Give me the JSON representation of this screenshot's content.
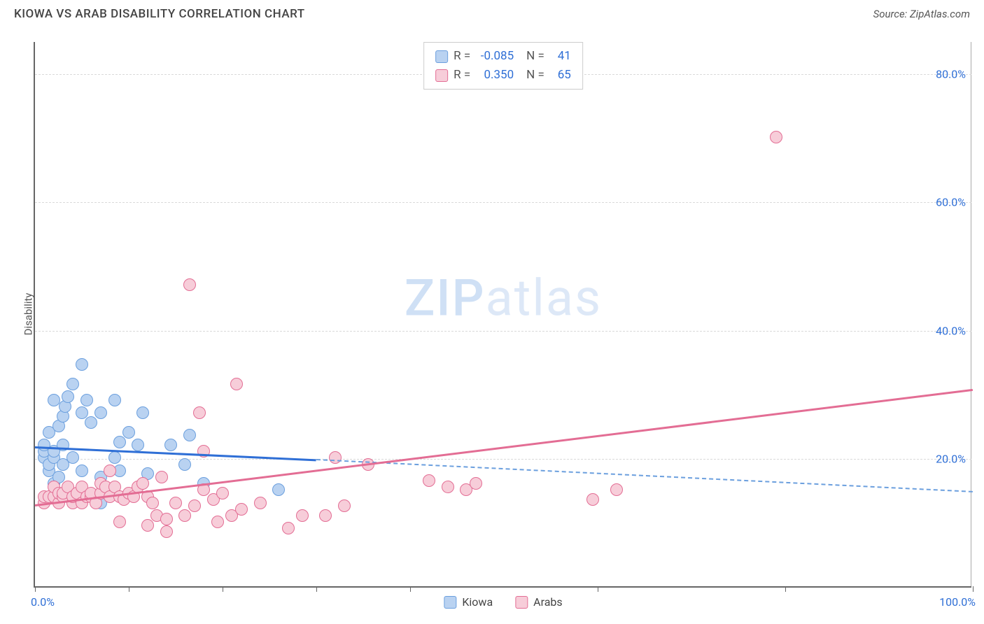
{
  "header": {
    "title": "KIOWA VS ARAB DISABILITY CORRELATION CHART",
    "source": "Source: ZipAtlas.com"
  },
  "watermark": {
    "bold": "ZIP",
    "light": "atlas"
  },
  "chart": {
    "type": "scatter",
    "y_axis_title": "Disability",
    "xlim": [
      0,
      100
    ],
    "ylim": [
      0,
      85
    ],
    "x_axis_label_left": "0.0%",
    "x_axis_label_right": "100.0%",
    "y_ticks": [
      {
        "value": 20,
        "label": "20.0%"
      },
      {
        "value": 40,
        "label": "40.0%"
      },
      {
        "value": 60,
        "label": "60.0%"
      },
      {
        "value": 80,
        "label": "80.0%"
      }
    ],
    "x_tick_positions": [
      0,
      10,
      20,
      30,
      40,
      60,
      80,
      100
    ],
    "background_color": "#ffffff",
    "grid_color": "#d9d9d9",
    "axis_color": "#666666",
    "point_radius": 9,
    "series": [
      {
        "name": "Kiowa",
        "fill_color": "#b9d2f1",
        "stroke_color": "#6b9fde",
        "correlation_R": "-0.085",
        "correlation_N": "41",
        "trend": {
          "x1": 0,
          "y1": 22,
          "x2": 30,
          "y2": 20,
          "solid_color": "#2f6fd6",
          "extend_x": 100,
          "extend_y": 15,
          "dash_color": "#6b9fde"
        },
        "points": [
          [
            1,
            20
          ],
          [
            1,
            21
          ],
          [
            1,
            22
          ],
          [
            1.5,
            18
          ],
          [
            1.5,
            19
          ],
          [
            1.5,
            24
          ],
          [
            2,
            16
          ],
          [
            2,
            20
          ],
          [
            2,
            21
          ],
          [
            2,
            29
          ],
          [
            2.5,
            17
          ],
          [
            2.5,
            25
          ],
          [
            3,
            19
          ],
          [
            3,
            22
          ],
          [
            3,
            26.5
          ],
          [
            3.2,
            28
          ],
          [
            3.5,
            14
          ],
          [
            3.5,
            29.5
          ],
          [
            4,
            20
          ],
          [
            4,
            31.5
          ],
          [
            5,
            18
          ],
          [
            5,
            27
          ],
          [
            5,
            34.5
          ],
          [
            5.5,
            29
          ],
          [
            6,
            25.5
          ],
          [
            7,
            13
          ],
          [
            7,
            17
          ],
          [
            7,
            27
          ],
          [
            8.5,
            20
          ],
          [
            8.5,
            29
          ],
          [
            9,
            18
          ],
          [
            9,
            22.5
          ],
          [
            10,
            24
          ],
          [
            11,
            22
          ],
          [
            11.5,
            27
          ],
          [
            12,
            17.5
          ],
          [
            14.5,
            22
          ],
          [
            16,
            19
          ],
          [
            16.5,
            23.5
          ],
          [
            18,
            16
          ],
          [
            26,
            15
          ]
        ]
      },
      {
        "name": "Arabs",
        "fill_color": "#f7cdd9",
        "stroke_color": "#e36d94",
        "correlation_R": "0.350",
        "correlation_N": "65",
        "trend": {
          "x1": 0,
          "y1": 13,
          "x2": 100,
          "y2": 31,
          "solid_color": "#e36d94"
        },
        "points": [
          [
            1,
            13
          ],
          [
            1,
            14
          ],
          [
            1.5,
            14
          ],
          [
            2,
            14
          ],
          [
            2,
            15.5
          ],
          [
            2.5,
            13
          ],
          [
            2.5,
            14.5
          ],
          [
            3,
            14
          ],
          [
            3,
            14.5
          ],
          [
            3.5,
            15.5
          ],
          [
            4,
            13
          ],
          [
            4,
            14
          ],
          [
            4.5,
            14.5
          ],
          [
            5,
            15.5
          ],
          [
            5,
            13
          ],
          [
            5.5,
            14
          ],
          [
            6,
            14
          ],
          [
            6,
            14.5
          ],
          [
            6.5,
            13
          ],
          [
            7,
            14.5
          ],
          [
            7,
            16
          ],
          [
            7.5,
            15.5
          ],
          [
            8,
            14
          ],
          [
            8,
            18
          ],
          [
            8.5,
            15.5
          ],
          [
            9,
            10
          ],
          [
            9,
            14
          ],
          [
            9.5,
            13.5
          ],
          [
            10,
            14.5
          ],
          [
            10.5,
            14
          ],
          [
            11,
            15.5
          ],
          [
            11.5,
            16
          ],
          [
            12,
            9.5
          ],
          [
            12,
            14
          ],
          [
            12.5,
            13
          ],
          [
            13,
            11
          ],
          [
            13.5,
            17
          ],
          [
            14,
            8.5
          ],
          [
            14,
            10.5
          ],
          [
            15,
            13
          ],
          [
            16,
            11
          ],
          [
            16.5,
            47
          ],
          [
            17,
            12.5
          ],
          [
            17.5,
            27
          ],
          [
            18,
            15
          ],
          [
            18,
            21
          ],
          [
            19,
            13.5
          ],
          [
            19.5,
            10
          ],
          [
            20,
            14.5
          ],
          [
            21,
            11
          ],
          [
            21.5,
            31.5
          ],
          [
            22,
            12
          ],
          [
            24,
            13
          ],
          [
            27,
            9
          ],
          [
            28.5,
            11
          ],
          [
            31,
            11
          ],
          [
            32,
            20
          ],
          [
            33,
            12.5
          ],
          [
            35.5,
            19
          ],
          [
            42,
            16.5
          ],
          [
            44,
            15.5
          ],
          [
            46,
            15
          ],
          [
            47,
            16
          ],
          [
            59.5,
            13.5
          ],
          [
            62,
            15
          ],
          [
            79,
            70
          ]
        ]
      }
    ],
    "legend_bottom": [
      {
        "name": "Kiowa",
        "fill": "#b9d2f1",
        "stroke": "#6b9fde"
      },
      {
        "name": "Arabs",
        "fill": "#f7cdd9",
        "stroke": "#e36d94"
      }
    ]
  }
}
